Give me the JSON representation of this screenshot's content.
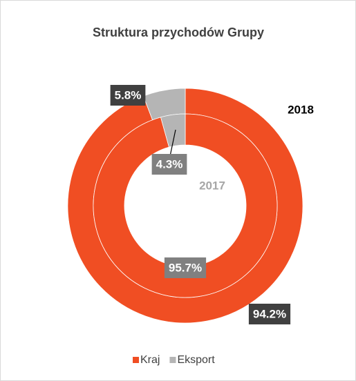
{
  "chart_data": {
    "type": "donut",
    "title": "Struktura przychodów Grupy",
    "categories": [
      "Kraj",
      "Eksport"
    ],
    "colors": [
      "#f04e23",
      "#b5b5b5"
    ],
    "series": [
      {
        "name": "2018",
        "values": [
          94.2,
          5.8
        ],
        "value_labels": [
          "94.2%",
          "5.8%"
        ]
      },
      {
        "name": "2017",
        "values": [
          95.7,
          4.3
        ],
        "value_labels": [
          "95.7%",
          "4.3%"
        ]
      }
    ]
  }
}
